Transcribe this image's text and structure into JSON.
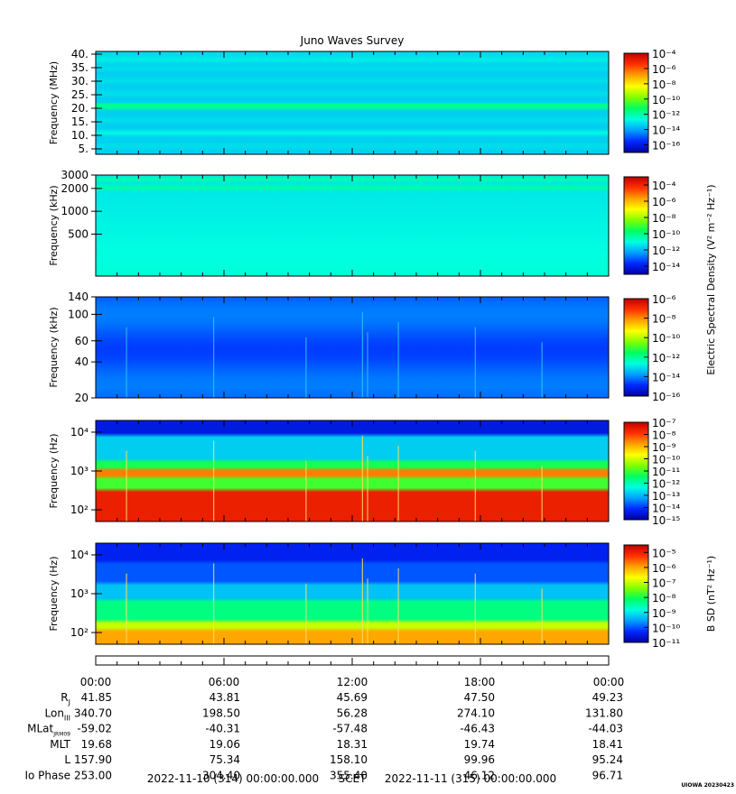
{
  "title": "Juno Waves Survey",
  "colors": {
    "colormap": [
      "#0000a0",
      "#0028ff",
      "#00a0ff",
      "#00ffe0",
      "#00ff60",
      "#80ff00",
      "#ffff00",
      "#ffa000",
      "#ff3000",
      "#c00000"
    ],
    "frame": "#000000",
    "background": "#ffffff"
  },
  "chart_data": [
    {
      "type": "heatmap",
      "name": "panel-hfr-high",
      "ylabel": "Frequency (MHz)",
      "yticks": [
        "40.",
        "35.",
        "30.",
        "25.",
        "20.",
        "15.",
        "10.",
        "5."
      ],
      "ytick_values": [
        40,
        35,
        30,
        25,
        20,
        15,
        10,
        5
      ],
      "ylim": [
        3,
        41
      ],
      "yscale": "linear",
      "colorbar": {
        "ticks": [
          "10^-4",
          "10^-6",
          "10^-8",
          "10^-10",
          "10^-12",
          "10^-14",
          "10^-16"
        ],
        "range_exp": [
          -17,
          -4
        ]
      },
      "dominant_level_exp": -13,
      "features": "uniform background with bright band near 21 MHz and weaker bands near 38 and 11 MHz"
    },
    {
      "type": "heatmap",
      "name": "panel-hfr-low",
      "ylabel": "Frequency (kHz)",
      "yticks": [
        "3000",
        "2000",
        "1000",
        "500"
      ],
      "ytick_values": [
        3000,
        2000,
        1000,
        500
      ],
      "ylim": [
        140,
        3000
      ],
      "yscale": "log",
      "colorbar": {
        "ticks": [
          "10^-4",
          "10^-6",
          "10^-8",
          "10^-10",
          "10^-12",
          "10^-14"
        ],
        "range_exp": [
          -15,
          -3
        ]
      },
      "colorbar_label": "Electric Spectral Density (V^2 m^-2 Hz^-1)",
      "dominant_level_exp": -11.5,
      "features": "smooth green background with stronger bands near 2000 and 2700 kHz"
    },
    {
      "type": "heatmap",
      "name": "panel-lfr-high",
      "ylabel": "Frequency (kHz)",
      "yticks": [
        "140",
        "100",
        "60",
        "40",
        "20"
      ],
      "ytick_values": [
        140,
        100,
        60,
        40,
        20
      ],
      "ylim": [
        20,
        140
      ],
      "yscale": "log",
      "colorbar": {
        "ticks": [
          "10^-6",
          "10^-8",
          "10^-10",
          "10^-12",
          "10^-14",
          "10^-16"
        ],
        "range_exp": [
          -16,
          -6
        ]
      },
      "dominant_level_exp": -14.5,
      "features": "blue background with scattered vertical spikes and bursts near 20:00 UT"
    },
    {
      "type": "heatmap",
      "name": "panel-lfr-low",
      "ylabel": "Frequency (Hz)",
      "yticks": [
        "10^4",
        "10^3",
        "10^2"
      ],
      "ytick_values": [
        10000,
        1000,
        100
      ],
      "ylim": [
        50,
        20000
      ],
      "yscale": "log",
      "colorbar": {
        "ticks": [
          "10^-7",
          "10^-8",
          "10^-9",
          "10^-10",
          "10^-11",
          "10^-12",
          "10^-13",
          "10^-14",
          "10^-15"
        ],
        "range_exp": [
          -15,
          -7
        ]
      },
      "dominant_level_exp": -11,
      "features": "intense emission below 300 Hz and band near 600 Hz, green to cyan above 2 kHz"
    },
    {
      "type": "heatmap",
      "name": "panel-magnetic",
      "ylabel": "Frequency (Hz)",
      "yticks": [
        "10^4",
        "10^3",
        "10^2"
      ],
      "ytick_values": [
        10000,
        1000,
        100
      ],
      "ylim": [
        50,
        20000
      ],
      "yscale": "log",
      "colorbar": {
        "ticks": [
          "10^-5",
          "10^-6",
          "10^-7",
          "10^-8",
          "10^-9",
          "10^-10",
          "10^-11"
        ],
        "range_exp": [
          -11,
          -4.5
        ]
      },
      "colorbar_label": "B SD (nT^2 Hz^-1)",
      "dominant_level_exp": -8,
      "features": "yellow/orange below 200 Hz fading through green to blue above 5 kHz"
    }
  ],
  "ephemeris": {
    "time_ticks": [
      "00:00",
      "06:00",
      "12:00",
      "18:00",
      "00:00"
    ],
    "rows": [
      {
        "label": "R",
        "sub": "J",
        "values": [
          "41.85",
          "43.81",
          "45.69",
          "47.50",
          "49.23"
        ]
      },
      {
        "label": "Lon",
        "sub": "III",
        "values": [
          "340.70",
          "198.50",
          "56.28",
          "274.10",
          "131.80"
        ]
      },
      {
        "label": "MLat",
        "sub": "JRM09",
        "values": [
          "-59.02",
          "-40.31",
          "-57.48",
          "-46.43",
          "-44.03"
        ]
      },
      {
        "label": "MLT",
        "sub": "",
        "values": [
          "19.68",
          "19.06",
          "18.31",
          "19.74",
          "18.41"
        ]
      },
      {
        "label": "L",
        "sub": "",
        "values": [
          "157.90",
          "75.34",
          "158.10",
          "99.96",
          "95.24"
        ]
      },
      {
        "label": "Io Phase",
        "sub": "",
        "values": [
          "253.00",
          "304.40",
          "355.40",
          "46.12",
          "96.71"
        ]
      }
    ]
  },
  "footer": {
    "start": "2022-11-10 (314) 00:00:00.000",
    "scet": "SCET",
    "end": "2022-11-11 (315) 00:00:00.000",
    "credit": "UIOWA 20230423"
  }
}
